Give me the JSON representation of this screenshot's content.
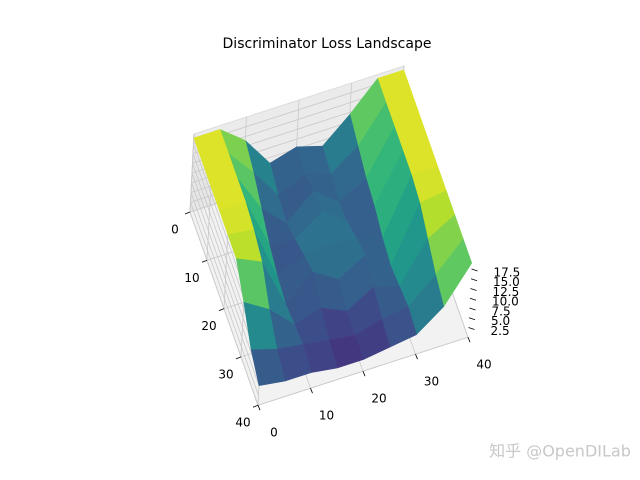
{
  "chart_data": {
    "type": "surface",
    "title": "Discriminator Loss Landscape",
    "x": [
      0,
      5,
      10,
      15,
      20,
      25,
      30,
      35,
      40
    ],
    "y": [
      0,
      5,
      10,
      15,
      20,
      25,
      30,
      35,
      40
    ],
    "z": [
      [
        19,
        19,
        14,
        6,
        8,
        6,
        12,
        19,
        19
      ],
      [
        19,
        19,
        12,
        4,
        7,
        5,
        10,
        19,
        19
      ],
      [
        19,
        19,
        9,
        3,
        9,
        4,
        8,
        19,
        19
      ],
      [
        19,
        19,
        6,
        5,
        10,
        5,
        7,
        19,
        19
      ],
      [
        19,
        18,
        4,
        7,
        8,
        7,
        5,
        19,
        19
      ],
      [
        19,
        16,
        3,
        9,
        5,
        9,
        4,
        18,
        19
      ],
      [
        14,
        10,
        4,
        6,
        3,
        7,
        5,
        15,
        19
      ],
      [
        8,
        6,
        5,
        4,
        3,
        5,
        6,
        12,
        19
      ],
      [
        5,
        4,
        4,
        3,
        3,
        4,
        5,
        10,
        19
      ]
    ],
    "colormap": "viridis",
    "xlim": [
      0,
      40
    ],
    "xticks": [
      0,
      10,
      20,
      30,
      40
    ],
    "ylim": [
      0,
      40
    ],
    "yticks": [
      0,
      10,
      20,
      30,
      40
    ],
    "zlim": [
      0,
      20
    ],
    "zticks": [
      2.5,
      {
        "value": 5,
        "label": "5.0"
      },
      7.5,
      {
        "value": 10,
        "label": "10.0"
      },
      12.5,
      {
        "value": 15,
        "label": "15.0"
      },
      17.5
    ],
    "grid": true
  },
  "watermark": "知乎 @OpenDILab"
}
